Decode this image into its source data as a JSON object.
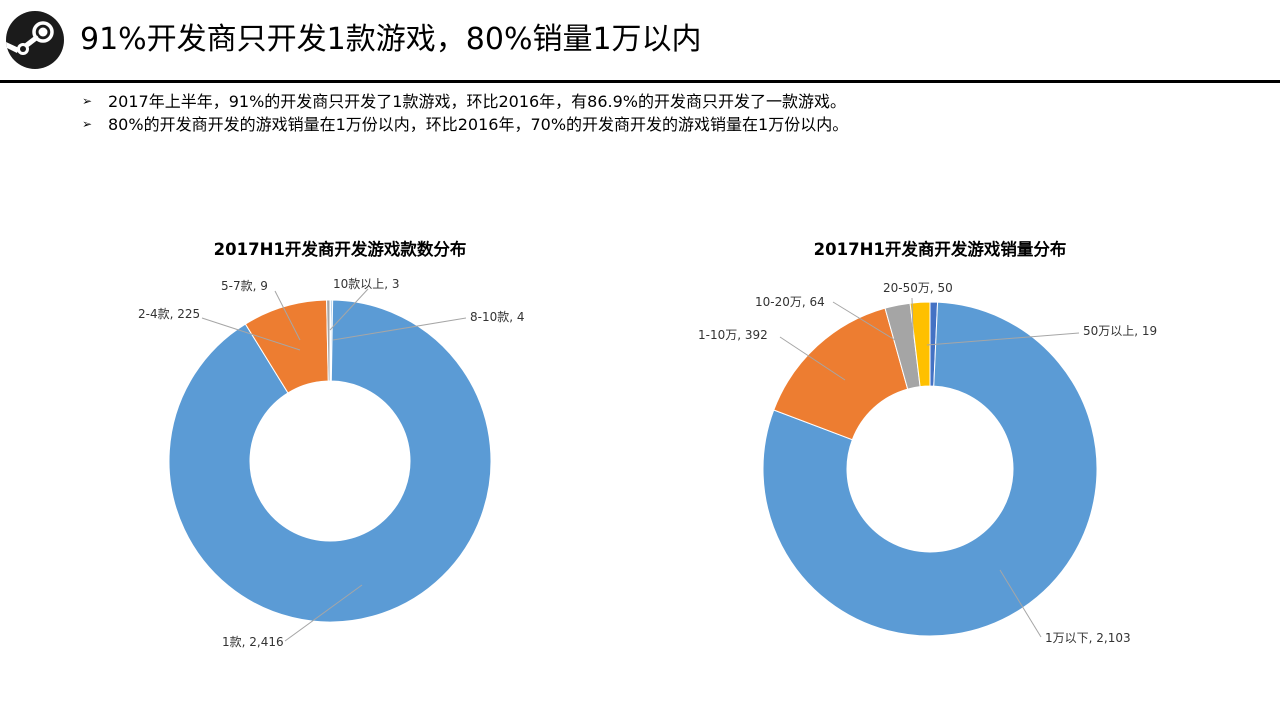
{
  "header": {
    "title": "91%开发商只开发1款游戏，80%销量1万以内",
    "logo_icon": "steam-logo-icon"
  },
  "bullets": [
    "2017年上半年，91%的开发商只开发了1款游戏，环比2016年，有86.9%的开发商只开发了一款游戏。",
    "80%的开发商开发的游戏销量在1万份以内，环比2016年，70%的开发商开发的游戏销量在1万份以内。"
  ],
  "bullet_marker": "➢",
  "chart_data": [
    {
      "type": "pie",
      "title": "2017H1开发商开发游戏款数分布",
      "categories": [
        "10款以上",
        "8-10款",
        "1款",
        "2-4款",
        "5-7款"
      ],
      "values": [
        3,
        4,
        2416,
        225,
        9
      ],
      "data_labels": [
        "10款以上, 3",
        "8-10款, 4",
        "1款, 2,416",
        "2-4款, 225",
        "5-7款, 9"
      ],
      "colors": [
        "#4472c4",
        "#5b9bd5",
        "#5b9bd5",
        "#ed7d31",
        "#a5a5a5"
      ],
      "donut": true
    },
    {
      "type": "pie",
      "title": "2017H1开发商开发游戏销量分布",
      "categories": [
        "50万以上",
        "1万以下",
        "1-10万",
        "10-20万",
        "20-50万"
      ],
      "values": [
        19,
        2103,
        392,
        64,
        50
      ],
      "data_labels": [
        "50万以上, 19",
        "1万以下, 2,103",
        "1-10万, 392",
        "10-20万, 64",
        "20-50万, 50"
      ],
      "colors": [
        "#4472c4",
        "#5b9bd5",
        "#ed7d31",
        "#a5a5a5",
        "#ffc000"
      ],
      "donut": true
    }
  ]
}
